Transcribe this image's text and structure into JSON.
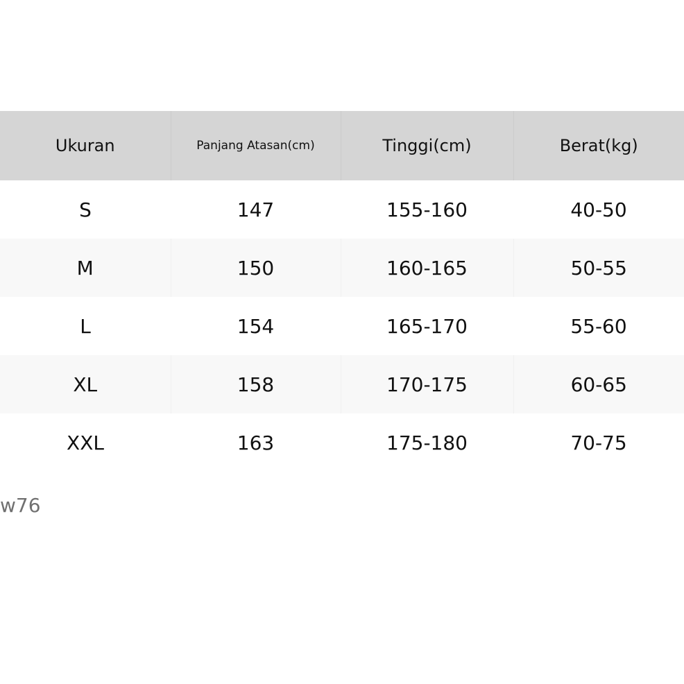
{
  "table": {
    "headers": [
      "Ukuran",
      "Panjang Atasan(cm)",
      "Tinggi(cm)",
      "Berat(kg)"
    ],
    "rows": [
      [
        "S",
        "147",
        "155-160",
        "40-50"
      ],
      [
        "M",
        "150",
        "160-165",
        "50-55"
      ],
      [
        "L",
        "154",
        "165-170",
        "55-60"
      ],
      [
        "XL",
        "158",
        "170-175",
        "60-65"
      ],
      [
        "XXL",
        "163",
        "175-180",
        "70-75"
      ]
    ]
  },
  "footer_code": "w76",
  "colors": {
    "header_bg": "#d5d5d5",
    "stripe_bg": "#f8f8f8",
    "code_text": "#707070"
  }
}
